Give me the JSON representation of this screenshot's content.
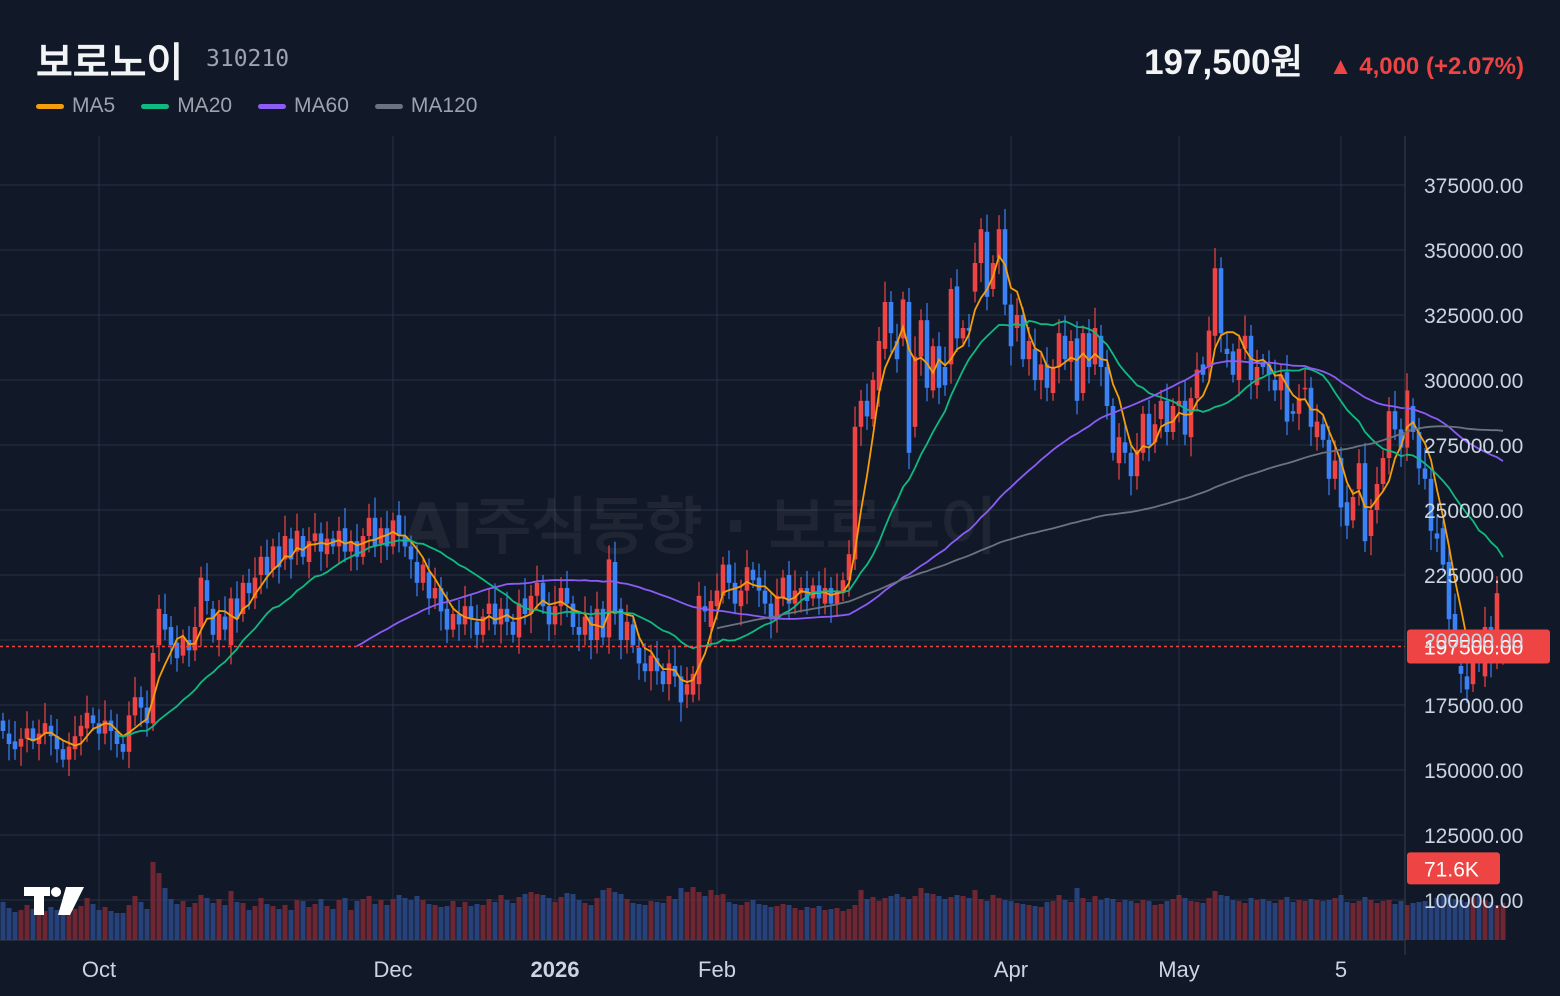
{
  "header": {
    "name": "보로노이",
    "code": "310210",
    "price": "197,500원",
    "change": "▲ 4,000 (+2.07%)"
  },
  "legend": [
    {
      "label": "MA5",
      "color": "#f59e0b"
    },
    {
      "label": "MA20",
      "color": "#10b981"
    },
    {
      "label": "MA60",
      "color": "#8b5cf6"
    },
    {
      "label": "MA120",
      "color": "#6b7280"
    }
  ],
  "colors": {
    "background": "#111827",
    "up": "#ef4444",
    "down": "#3b82f6",
    "grid": "#273244",
    "price_line": "#ef4444"
  },
  "watermark": "AI주식동향 · 보로노이",
  "logo_text": "TV",
  "chart_data": {
    "type": "candlestick",
    "ylim": [
      75000,
      390000
    ],
    "yticks": [
      "375000.00",
      "350000.00",
      "325000.00",
      "300000.00",
      "275000.00",
      "250000.00",
      "225000.00",
      "200000.00",
      "175000.00",
      "150000.00",
      "125000.00",
      "100000.00"
    ],
    "ytick_values": [
      375000,
      350000,
      325000,
      300000,
      275000,
      250000,
      225000,
      200000,
      175000,
      150000,
      125000,
      100000
    ],
    "x_labels": [
      {
        "label": "Oct",
        "index": 16,
        "bold": false
      },
      {
        "label": "Dec",
        "index": 65,
        "bold": false
      },
      {
        "label": "2026",
        "index": 92,
        "bold": true
      },
      {
        "label": "Feb",
        "index": 119,
        "bold": false
      },
      {
        "label": "Apr",
        "index": 168,
        "bold": false
      },
      {
        "label": "May",
        "index": 196,
        "bold": false
      },
      {
        "label": "5",
        "index": 223,
        "bold": false
      }
    ],
    "current_price": 197500,
    "current_price_label": "197500.00",
    "volume_label": "71.6K",
    "volume_label_value": 71600,
    "series_ohlc": [
      [
        169000,
        165000
      ],
      [
        164000,
        160000
      ],
      [
        161000,
        158000
      ],
      [
        159000,
        162000
      ],
      [
        162000,
        166000
      ],
      [
        166000,
        161000
      ],
      [
        160000,
        164000
      ],
      [
        164000,
        168000
      ],
      [
        167000,
        163000
      ],
      [
        163000,
        158000
      ],
      [
        158000,
        154000
      ],
      [
        154000,
        159000
      ],
      [
        158000,
        163000
      ],
      [
        163000,
        167000
      ],
      [
        166000,
        172000
      ],
      [
        171000,
        168000
      ],
      [
        168000,
        164000
      ],
      [
        164000,
        169000
      ],
      [
        169000,
        165000
      ],
      [
        165000,
        160000
      ],
      [
        160000,
        157000
      ],
      [
        157000,
        171000
      ],
      [
        171000,
        178000
      ],
      [
        178000,
        174000
      ],
      [
        174000,
        168000
      ],
      [
        168000,
        195000
      ],
      [
        198000,
        212000
      ],
      [
        210000,
        204000
      ],
      [
        205000,
        198000
      ],
      [
        199000,
        193000
      ],
      [
        194000,
        201000
      ],
      [
        200000,
        196000
      ],
      [
        196000,
        205000
      ],
      [
        205000,
        224000
      ],
      [
        223000,
        215000
      ],
      [
        212000,
        202000
      ],
      [
        200000,
        210000
      ],
      [
        209000,
        204000
      ],
      [
        198000,
        216000
      ],
      [
        216000,
        208000
      ],
      [
        210000,
        222000
      ],
      [
        222000,
        218000
      ],
      [
        216000,
        224000
      ],
      [
        225000,
        232000
      ],
      [
        232000,
        225000
      ],
      [
        227000,
        236000
      ],
      [
        236000,
        228000
      ],
      [
        231000,
        240000
      ],
      [
        239000,
        231000
      ],
      [
        234000,
        242000
      ],
      [
        240000,
        232000
      ],
      [
        230000,
        238000
      ],
      [
        238000,
        241000
      ],
      [
        241000,
        234000
      ],
      [
        233000,
        239000
      ],
      [
        239000,
        236000
      ],
      [
        236000,
        242000
      ],
      [
        243000,
        234000
      ],
      [
        234000,
        238000
      ],
      [
        238000,
        232000
      ],
      [
        232000,
        240000
      ],
      [
        240000,
        247000
      ],
      [
        247000,
        236000
      ],
      [
        237000,
        243000
      ],
      [
        243000,
        236000
      ],
      [
        236000,
        246000
      ],
      [
        248000,
        240000
      ],
      [
        240000,
        236000
      ],
      [
        236000,
        231000
      ],
      [
        230000,
        222000
      ],
      [
        222000,
        229000
      ],
      [
        226000,
        216000
      ],
      [
        216000,
        220000
      ],
      [
        220000,
        211000
      ],
      [
        212000,
        204000
      ],
      [
        204000,
        210000
      ],
      [
        210000,
        206000
      ],
      [
        206000,
        213000
      ],
      [
        213000,
        208000
      ],
      [
        207000,
        202000
      ],
      [
        202000,
        209000
      ],
      [
        210000,
        214000
      ],
      [
        214000,
        206000
      ],
      [
        206000,
        212000
      ],
      [
        212000,
        207000
      ],
      [
        207000,
        202000
      ],
      [
        201000,
        214000
      ],
      [
        216000,
        210000
      ],
      [
        210000,
        217000
      ],
      [
        217000,
        222000
      ],
      [
        222000,
        213000
      ],
      [
        213000,
        206000
      ],
      [
        206000,
        213000
      ],
      [
        213000,
        220000
      ],
      [
        220000,
        214000
      ],
      [
        214000,
        205000
      ],
      [
        205000,
        202000
      ],
      [
        202000,
        209000
      ],
      [
        209000,
        200000
      ],
      [
        200000,
        212000
      ],
      [
        212000,
        201000
      ],
      [
        201000,
        231000
      ],
      [
        230000,
        210000
      ],
      [
        212000,
        200000
      ],
      [
        200000,
        207000
      ],
      [
        206000,
        198000
      ],
      [
        197000,
        191000
      ],
      [
        191000,
        188000
      ],
      [
        188000,
        194000
      ],
      [
        193000,
        188000
      ],
      [
        188000,
        183000
      ],
      [
        183000,
        191000
      ],
      [
        190000,
        186000
      ],
      [
        186000,
        176000
      ],
      [
        179000,
        183000
      ],
      [
        179000,
        187000
      ],
      [
        183000,
        217000
      ],
      [
        213000,
        211000
      ],
      [
        205000,
        215000
      ],
      [
        213000,
        219000
      ],
      [
        217000,
        229000
      ],
      [
        229000,
        222000
      ],
      [
        222000,
        214000
      ],
      [
        213000,
        219000
      ],
      [
        219000,
        228000
      ],
      [
        227000,
        223000
      ],
      [
        224000,
        219000
      ],
      [
        219000,
        214000
      ],
      [
        214000,
        208000
      ],
      [
        208000,
        217000
      ],
      [
        216000,
        224000
      ],
      [
        225000,
        214000
      ],
      [
        214000,
        219000
      ],
      [
        218000,
        220000
      ],
      [
        220000,
        215000
      ],
      [
        216000,
        221000
      ],
      [
        221000,
        216000
      ],
      [
        214000,
        220000
      ],
      [
        220000,
        214000
      ],
      [
        214000,
        219000
      ],
      [
        218000,
        223000
      ],
      [
        223000,
        233000
      ],
      [
        231000,
        282000
      ],
      [
        282000,
        292000
      ],
      [
        292000,
        286000
      ],
      [
        285000,
        300000
      ],
      [
        296000,
        315000
      ],
      [
        312000,
        330000
      ],
      [
        330000,
        318000
      ],
      [
        315000,
        308000
      ],
      [
        316000,
        331000
      ],
      [
        330000,
        272000
      ],
      [
        282000,
        309000
      ],
      [
        309000,
        323000
      ],
      [
        323000,
        297000
      ],
      [
        296000,
        313000
      ],
      [
        313000,
        297000
      ],
      [
        305000,
        298000
      ],
      [
        306000,
        335000
      ],
      [
        336000,
        316000
      ],
      [
        316000,
        320000
      ],
      [
        320000,
        319000
      ],
      [
        334000,
        345000
      ],
      [
        345000,
        358000
      ],
      [
        357000,
        332000
      ],
      [
        335000,
        345000
      ],
      [
        347000,
        358000
      ],
      [
        358000,
        329000
      ],
      [
        329000,
        313000
      ],
      [
        320000,
        325000
      ],
      [
        325000,
        308000
      ],
      [
        308000,
        315000
      ],
      [
        312000,
        300000
      ],
      [
        300000,
        306000
      ],
      [
        306000,
        297000
      ],
      [
        295000,
        305000
      ],
      [
        305000,
        318000
      ],
      [
        317000,
        308000
      ],
      [
        307000,
        315000
      ],
      [
        316000,
        292000
      ],
      [
        295000,
        318000
      ],
      [
        318000,
        305000
      ],
      [
        306000,
        320000
      ],
      [
        317000,
        305000
      ],
      [
        305000,
        290000
      ],
      [
        290000,
        272000
      ],
      [
        268000,
        278000
      ],
      [
        276000,
        272000
      ],
      [
        272000,
        263000
      ],
      [
        263000,
        273000
      ],
      [
        272000,
        287000
      ],
      [
        287000,
        275000
      ],
      [
        276000,
        283000
      ],
      [
        285000,
        292000
      ],
      [
        292000,
        280000
      ],
      [
        280000,
        290000
      ],
      [
        290000,
        292000
      ],
      [
        292000,
        279000
      ],
      [
        278000,
        293000
      ],
      [
        293000,
        304000
      ],
      [
        306000,
        302000
      ],
      [
        305000,
        319000
      ],
      [
        317000,
        343000
      ],
      [
        343000,
        318000
      ],
      [
        312000,
        310000
      ],
      [
        311000,
        302000
      ],
      [
        300000,
        312000
      ],
      [
        312000,
        317000
      ],
      [
        317000,
        300000
      ],
      [
        298000,
        305000
      ],
      [
        307000,
        305000
      ],
      [
        306000,
        302000
      ],
      [
        300000,
        296000
      ],
      [
        296000,
        302000
      ],
      [
        303000,
        284000
      ],
      [
        288000,
        287000
      ],
      [
        287000,
        293000
      ],
      [
        297000,
        297000
      ],
      [
        297000,
        282000
      ],
      [
        278000,
        284000
      ],
      [
        283000,
        277000
      ],
      [
        277000,
        262000
      ],
      [
        262000,
        269000
      ],
      [
        270000,
        251000
      ],
      [
        253000,
        244000
      ],
      [
        246000,
        255000
      ],
      [
        258000,
        268000
      ],
      [
        268000,
        238000
      ],
      [
        240000,
        250000
      ],
      [
        250000,
        260000
      ],
      [
        260000,
        270000
      ],
      [
        270000,
        288000
      ],
      [
        288000,
        281000
      ],
      [
        281000,
        274000
      ],
      [
        274000,
        296000
      ],
      [
        290000,
        280000
      ],
      [
        280000,
        266000
      ],
      [
        266000,
        262000
      ],
      [
        262000,
        242000
      ],
      [
        241000,
        239000
      ],
      [
        243000,
        229000
      ],
      [
        230000,
        208000
      ],
      [
        210000,
        197000
      ],
      [
        190000,
        187000
      ],
      [
        186000,
        181000
      ],
      [
        183000,
        200000
      ],
      [
        196000,
        194000
      ],
      [
        186000,
        205000
      ],
      [
        205000,
        193000
      ],
      [
        194000,
        218000
      ],
      [
        193500,
        197500
      ]
    ],
    "volumes": [
      38000,
      32000,
      28000,
      30000,
      35000,
      31000,
      27000,
      29000,
      33000,
      30000,
      26000,
      28000,
      31000,
      34000,
      42000,
      36000,
      30000,
      33000,
      29000,
      27000,
      27000,
      35000,
      44000,
      38000,
      31000,
      78000,
      67000,
      52000,
      41000,
      36000,
      39000,
      33000,
      37000,
      45000,
      42000,
      37000,
      41000,
      35000,
      49000,
      38000,
      37000,
      30000,
      34000,
      42000,
      36000,
      34000,
      31000,
      35000,
      30000,
      40000,
      39000,
      33000,
      36000,
      41000,
      34000,
      31000,
      40000,
      42000,
      30000,
      39000,
      41000,
      44000,
      36000,
      40000,
      35000,
      41000,
      45000,
      42000,
      40000,
      44000,
      40000,
      36000,
      35000,
      33000,
      34000,
      39000,
      33000,
      38000,
      34000,
      36000,
      35000,
      41000,
      38000,
      45000,
      40000,
      37000,
      43000,
      46000,
      48000,
      46000,
      45000,
      42000,
      38000,
      43000,
      47000,
      46000,
      40000,
      37000,
      35000,
      42000,
      50000,
      52000,
      48000,
      46000,
      41000,
      37000,
      36000,
      35000,
      39000,
      38000,
      37000,
      44000,
      41000,
      52000,
      48000,
      53000,
      48000,
      44000,
      50000,
      45000,
      46000,
      38000,
      36000,
      35000,
      38000,
      40000,
      36000,
      35000,
      33000,
      34000,
      36000,
      35000,
      32000,
      30000,
      33000,
      32000,
      34000,
      30000,
      31000,
      32000,
      29000,
      31000,
      35000,
      50000,
      41000,
      43000,
      39000,
      42000,
      44000,
      46000,
      43000,
      41000,
      44000,
      52000,
      47000,
      46000,
      44000,
      41000,
      43000,
      45000,
      44000,
      42000,
      50000,
      41000,
      39000,
      45000,
      42000,
      40000,
      39000,
      37000,
      36000,
      35000,
      34000,
      33000,
      38000,
      39000,
      45000,
      40000,
      38000,
      52000,
      42000,
      38000,
      44000,
      40000,
      42000,
      41000,
      38000,
      40000,
      39000,
      37000,
      40000,
      39000,
      35000,
      36000,
      39000,
      41000,
      45000,
      42000,
      39000,
      38000,
      37000,
      42000,
      49000,
      45000,
      44000,
      40000,
      39000,
      37000,
      42000,
      40000,
      41000,
      39000,
      37000,
      40000,
      43000,
      38000,
      40000,
      39000,
      41000,
      40000,
      39000,
      40000,
      42000,
      45000,
      38000,
      37000,
      39000,
      43000,
      40000,
      37000,
      39000,
      40000,
      36000,
      39000,
      35000,
      37000,
      38000,
      39000,
      34000,
      42000,
      44000,
      46000,
      41000,
      40000,
      38000,
      43000,
      45000,
      40000,
      38000,
      35000,
      37000,
      41000,
      43000,
      39000,
      36000,
      38000,
      39000,
      42000,
      40000,
      38000,
      71600
    ]
  }
}
